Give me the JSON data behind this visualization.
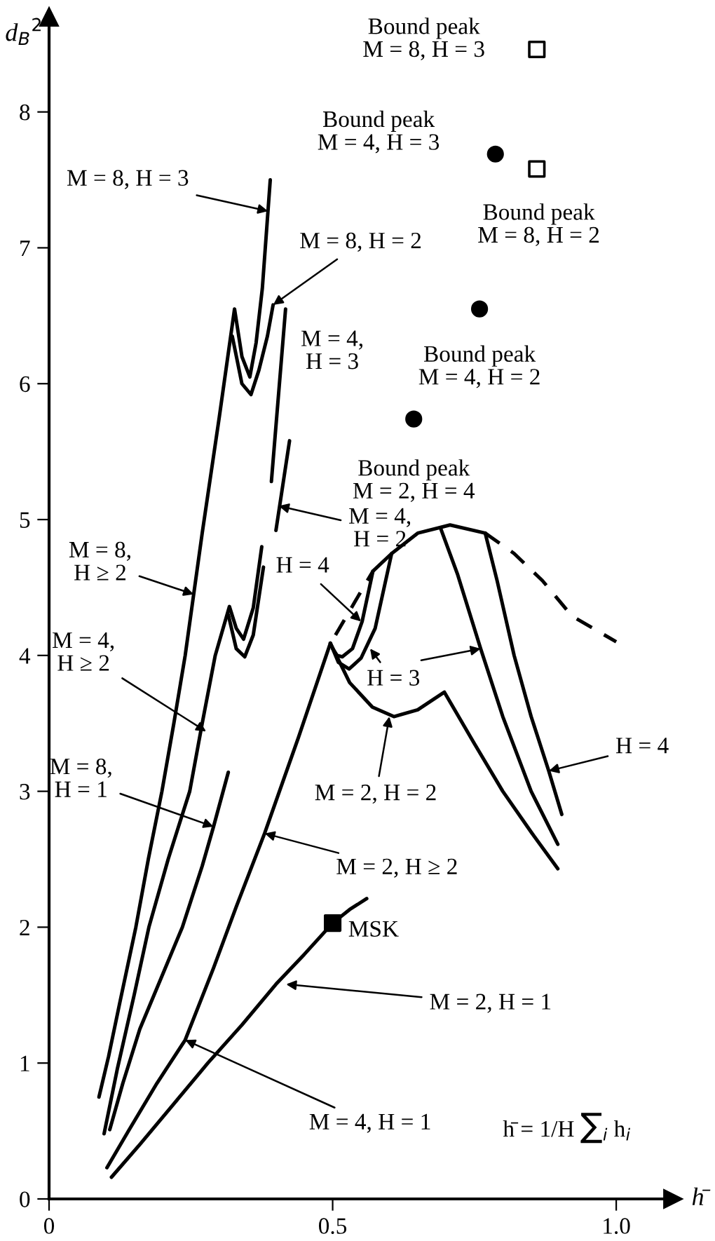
{
  "chart_data": {
    "type": "line",
    "xlabel": "h̄",
    "ylabel": "d$_{B}$$^{2}$",
    "xlim": [
      0,
      1.1
    ],
    "ylim": [
      0,
      8.7
    ],
    "xticks": [
      0,
      0.5,
      {
        "value": 1,
        "label": "1.0"
      }
    ],
    "yticks": [
      0,
      1,
      2,
      3,
      4,
      5,
      6,
      7,
      8
    ],
    "marker": "none",
    "series": [
      {
        "color": "#000000",
        "line_style": "solid",
        "x": [
          0.088,
          0.105,
          0.125,
          0.153,
          0.175,
          0.199,
          0.22,
          0.24,
          0.27,
          0.3,
          0.327,
          0.34,
          0.354,
          0.365,
          0.376,
          0.39
        ],
        "values": [
          0.75,
          1.05,
          1.45,
          2.0,
          2.5,
          3.0,
          3.5,
          4.0,
          4.9,
          5.75,
          6.55,
          6.2,
          6.05,
          6.3,
          6.7,
          7.5
        ]
      },
      {
        "color": "#000000",
        "line_style": "solid",
        "x": [
          0.323,
          0.34,
          0.356,
          0.37,
          0.385,
          0.395
        ],
        "values": [
          6.35,
          6.0,
          5.92,
          6.1,
          6.35,
          6.58
        ]
      },
      {
        "color": "#000000",
        "line_style": "solid",
        "x": [
          0.097,
          0.12,
          0.15,
          0.176,
          0.21,
          0.248,
          0.27,
          0.293,
          0.318,
          0.33,
          0.343,
          0.36,
          0.375,
          0.38,
          0.392,
          0.417
        ],
        "values": [
          0.48,
          0.95,
          1.5,
          2.0,
          2.5,
          3.0,
          3.5,
          4.0,
          4.36,
          4.2,
          4.12,
          4.35,
          4.8,
          null,
          5.28,
          6.55
        ]
      },
      {
        "color": "#000000",
        "line_style": "solid",
        "x": [
          0.316,
          0.33,
          0.345,
          0.36,
          0.378,
          0.39,
          0.4,
          0.424
        ],
        "values": [
          4.3,
          4.05,
          3.99,
          4.15,
          4.65,
          null,
          4.92,
          5.58
        ]
      },
      {
        "color": "#000000",
        "line_style": "solid",
        "x": [
          0.107,
          0.13,
          0.16,
          0.2,
          0.235,
          0.27,
          0.29,
          0.316
        ],
        "values": [
          0.51,
          0.85,
          1.25,
          1.65,
          2.0,
          2.45,
          2.74,
          3.14
        ]
      },
      {
        "color": "#000000",
        "line_style": "solid",
        "x": [
          0.102,
          0.14,
          0.19,
          0.24,
          0.29,
          0.33,
          0.38,
          0.44,
          0.496
        ],
        "values": [
          0.23,
          0.5,
          0.85,
          1.17,
          1.7,
          2.15,
          2.69,
          3.4,
          4.09
        ]
      },
      {
        "color": "#000000",
        "line_style": "solid",
        "x": [
          0.496,
          0.53,
          0.57,
          0.608,
          0.65,
          0.697,
          0.75,
          0.8,
          0.85,
          0.897
        ],
        "values": [
          4.09,
          3.8,
          3.62,
          3.55,
          3.6,
          3.73,
          3.35,
          3.0,
          2.7,
          2.43
        ]
      },
      {
        "color": "#000000",
        "line_style": "solid",
        "x": [
          0.496,
          0.51,
          0.529,
          0.55,
          0.575,
          0.604
        ],
        "values": [
          4.09,
          3.95,
          3.9,
          3.98,
          4.2,
          4.75
        ]
      },
      {
        "color": "#000000",
        "line_style": "solid",
        "x": [
          0.5,
          0.508,
          0.517,
          0.535,
          0.552,
          0.571
        ],
        "values": [
          4.05,
          4.0,
          3.99,
          4.05,
          4.25,
          4.62
        ]
      },
      {
        "color": "#000000",
        "line_style": "solid",
        "x": [
          0.69,
          0.72,
          0.761,
          0.8,
          0.85,
          0.897
        ],
        "values": [
          4.94,
          4.6,
          4.05,
          3.55,
          3.0,
          2.61
        ]
      },
      {
        "color": "#000000",
        "line_style": "solid",
        "x": [
          0.769,
          0.79,
          0.82,
          0.85,
          0.881,
          0.904
        ],
        "values": [
          4.9,
          4.55,
          4.0,
          3.55,
          3.15,
          2.83
        ]
      },
      {
        "color": "#000000",
        "line_style": "solid",
        "x": [
          0.571,
          0.604,
          0.65,
          0.707,
          0.769
        ],
        "values": [
          4.62,
          4.75,
          4.9,
          4.96,
          4.9
        ]
      },
      {
        "color": "#000000",
        "line_style": "dashed",
        "x": [
          0.505,
          0.54,
          0.571
        ],
        "values": [
          4.15,
          4.4,
          4.62
        ]
      },
      {
        "color": "#000000",
        "line_style": "dashed",
        "x": [
          0.769,
          0.82,
          0.87,
          0.922,
          1.0
        ],
        "values": [
          4.9,
          4.75,
          4.55,
          4.29,
          4.1
        ]
      },
      {
        "color": "#000000",
        "line_style": "solid",
        "x": [
          0.11,
          0.16,
          0.22,
          0.28,
          0.34,
          0.4,
          0.45,
          0.5,
          0.53,
          0.56
        ],
        "values": [
          0.16,
          0.4,
          0.7,
          1.0,
          1.28,
          1.58,
          1.8,
          2.03,
          2.13,
          2.21
        ]
      },
      {
        "type": "scatter",
        "color": "#000000",
        "marker": "square",
        "x": [
          0.5
        ],
        "values": [
          2.03
        ]
      },
      {
        "type": "scatter",
        "color": "#ffffff",
        "marker": "square",
        "x": [
          0.86,
          0.86
        ],
        "values": [
          8.46,
          7.58
        ]
      },
      {
        "type": "scatter",
        "color": "#000000",
        "marker": "circle",
        "x": [
          0.787,
          0.759,
          0.643
        ],
        "values": [
          7.69,
          6.55,
          5.74
        ]
      }
    ],
    "annotations": [
      {
        "text": "M = 8, H = 3",
        "x": 0.386,
        "y": 7.27
      },
      {
        "text": "M = 8, H = 2",
        "x": 0.395,
        "y": 6.58
      },
      {
        "text": "M = 4,\nH = 3",
        "x": 0.417,
        "y": 6.55
      },
      {
        "text": "M = 4,\nH = 2",
        "x": 0.405,
        "y": 5.1
      },
      {
        "text": "M = 8,\nH ≥ 2",
        "x": 0.255,
        "y": 4.45
      },
      {
        "text": "M = 4,\nH ≥ 2",
        "x": 0.277,
        "y": 3.44
      },
      {
        "text": "M = 8,\nH = 1",
        "x": 0.29,
        "y": 2.74
      },
      {
        "text": "M = 2, H ≥ 2",
        "x": 0.38,
        "y": 2.69
      },
      {
        "text": "M = 2, H = 2",
        "x": 0.6,
        "y": 3.55
      },
      {
        "text": "H = 4",
        "x": 0.55,
        "y": 4.25
      },
      {
        "text": "H = 3",
        "x": 0.566,
        "y": 4.05
      },
      {
        "text": "H = 4",
        "x": 0.881,
        "y": 3.15
      },
      {
        "text": "M = 2, H = 1",
        "x": 0.418,
        "y": 1.58
      },
      {
        "text": "M = 4, H = 1",
        "x": 0.24,
        "y": 1.17
      },
      {
        "text": "MSK",
        "x": 0.5,
        "y": 2.03
      },
      {
        "text": "Bound peak\nM = 8, H = 3",
        "x": 0.86,
        "y": 8.46
      },
      {
        "text": "Bound peak\nM = 4, H = 3",
        "x": 0.787,
        "y": 7.69
      },
      {
        "text": "Bound peak\nM = 8, H = 2",
        "x": 0.86,
        "y": 7.58
      },
      {
        "text": "Bound peak\nM = 4, H = 2",
        "x": 0.759,
        "y": 6.55
      },
      {
        "text": "Bound peak\nM = 2, H = 4",
        "x": 0.643,
        "y": 5.74
      },
      "h̄ = 1/H ∑$_{i}$ h$_{i}$"
    ]
  }
}
